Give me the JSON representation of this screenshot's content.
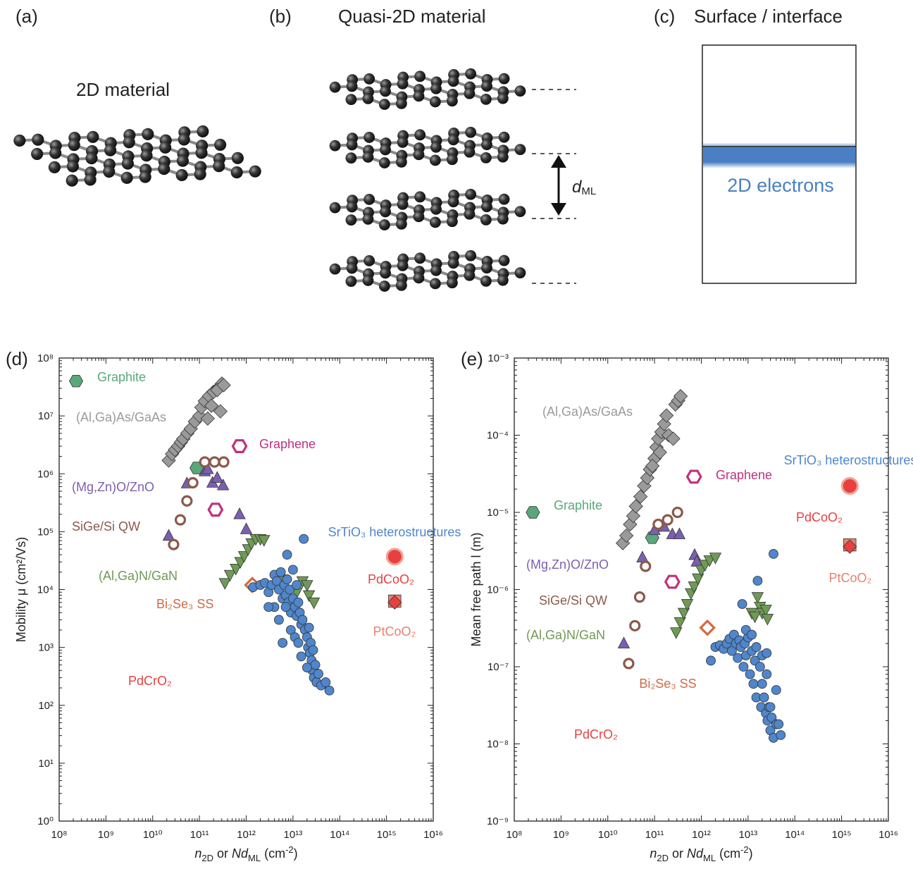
{
  "diagrams": {
    "a": {
      "label": "(a)",
      "title": "2D material"
    },
    "b": {
      "label": "(b)",
      "title": "Quasi-2D material",
      "spacing": [
        "d",
        "ML"
      ]
    },
    "c": {
      "label": "(c)",
      "title": "Surface / interface",
      "layer": "2D electrons"
    }
  },
  "chart_data": [
    {
      "type": "scatter",
      "panel": "(d)",
      "log_x": true,
      "log_y": true,
      "xlabel": [
        "n",
        "2D",
        " or ",
        "Nd",
        "ML",
        " (cm",
        "-2",
        ")"
      ],
      "ylabel": "Mobility μ (cm²/Vs)",
      "xlim": [
        100000000.0,
        1e+16
      ],
      "ylim": [
        1,
        100000000.0
      ],
      "xticks": [
        {
          "value": 100000000.0,
          "label": "10⁸"
        },
        {
          "value": 1000000000.0,
          "label": "10⁹"
        },
        {
          "value": 10000000000.0,
          "label": "10¹⁰"
        },
        {
          "value": 100000000000.0,
          "label": "10¹¹"
        },
        {
          "value": 1000000000000.0,
          "label": "10¹²"
        },
        {
          "value": 10000000000000.0,
          "label": "10¹³"
        },
        {
          "value": 100000000000000.0,
          "label": "10¹⁴"
        },
        {
          "value": 1000000000000000.0,
          "label": "10¹⁵"
        },
        {
          "value": 1e+16,
          "label": "10¹⁶"
        }
      ],
      "yticks": [
        {
          "value": 1,
          "label": "10⁰"
        },
        {
          "value": 10,
          "label": "10¹"
        },
        {
          "value": 100,
          "label": "10²"
        },
        {
          "value": 1000,
          "label": "10³"
        },
        {
          "value": 10000,
          "label": "10⁴"
        },
        {
          "value": 100000,
          "label": "10⁵"
        },
        {
          "value": 1000000,
          "label": "10⁶"
        },
        {
          "value": 10000000,
          "label": "10⁷"
        },
        {
          "value": 100000000,
          "label": "10⁸"
        }
      ],
      "series": [
        {
          "name": "Graphite",
          "color": "#5aa77a",
          "marker": "hexagon",
          "x": [
            230000000.0,
            87000000000.0
          ],
          "values": [
            40000000.0,
            1260000.0
          ]
        },
        {
          "name": "(Al,Ga)As/GaAs",
          "color": "#9a9a9a",
          "marker": "diamond",
          "x": [
            22000000000.0,
            26000000000.0,
            30000000000.0,
            35000000000.0,
            40000000000.0,
            45000000000.0,
            55000000000.0,
            65000000000.0,
            80000000000.0,
            100000000000.0,
            110000000000.0,
            130000000000.0,
            160000000000.0,
            200000000000.0,
            250000000000.0,
            300000000000.0,
            280000000000.0,
            150000000000.0,
            180000000000.0,
            240000000000.0,
            330000000000.0
          ],
          "values": [
            1700000.0,
            2200000.0,
            2600000.0,
            3000000.0,
            3500000.0,
            4000000.0,
            5000000.0,
            6000000.0,
            8000000.0,
            10000000.0,
            14000000.0,
            18000000.0,
            22000000.0,
            26000000.0,
            30000000.0,
            36000000.0,
            12000000.0,
            9000000.0,
            15000000.0,
            28000000.0,
            34000000.0
          ]
        },
        {
          "name": "Graphene",
          "color": "#c0307f",
          "marker": "hexagon-open",
          "x": [
            720000000000.0,
            220000000000.0
          ],
          "values": [
            3000000.0,
            240000.0
          ]
        },
        {
          "name": "(Mg,Zn)O/ZnO",
          "color": "#7b5fb0",
          "marker": "triangle",
          "x": [
            22000000000.0,
            54000000000.0,
            130000000000.0,
            150000000000.0,
            190000000000.0,
            320000000000.0,
            720000000000.0,
            1000000000000.0,
            240000000000.0
          ],
          "values": [
            85000.0,
            680000.0,
            1100000.0,
            1200000.0,
            700000.0,
            630000.0,
            200000.0,
            110000.0,
            850000.0
          ]
        },
        {
          "name": "SiGe/Si QW",
          "color": "#8b5a4a",
          "marker": "circle-open",
          "x": [
            28000000000.0,
            39000000000.0,
            54000000000.0,
            72000000000.0,
            130000000000.0,
            210000000000.0,
            330000000000.0
          ],
          "values": [
            60000.0,
            160000.0,
            340000.0,
            700000.0,
            1600000.0,
            1600000.0,
            1600000.0
          ]
        },
        {
          "name": "(Al,Ga)N/GaN",
          "color": "#6f9a55",
          "marker": "triangle-down",
          "x": [
            350000000000.0,
            450000000000.0,
            600000000000.0,
            750000000000.0,
            900000000000.0,
            1100000000000.0,
            1300000000000.0,
            1600000000000.0,
            2000000000000.0,
            2400000000000.0,
            6000000000000.0,
            16000000000000.0,
            22000000000000.0,
            28000000000000.0,
            12000000000000.0,
            20000000000000.0,
            10000000000000.0
          ],
          "values": [
            13000.0,
            18000.0,
            23000.0,
            30000.0,
            38000.0,
            50000.0,
            63000.0,
            75000.0,
            75000.0,
            72000.0,
            15000.0,
            14000.0,
            8000.0,
            6000.0,
            9000.0,
            12000.0,
            5000.0
          ]
        },
        {
          "name": "Bi₂Se₃ SS",
          "color": "#d06a45",
          "marker": "diamond-open",
          "x": [
            1350000000000.0
          ],
          "values": [
            12000.0
          ]
        },
        {
          "name": "SrTiO₃ heterostructures",
          "color": "#4f86cc",
          "marker": "circle",
          "x": [
            1400000000000.0,
            2000000000000.0,
            2500000000000.0,
            3000000000000.0,
            3500000000000.0,
            4000000000000.0,
            4500000000000.0,
            5000000000000.0,
            5500000000000.0,
            6000000000000.0,
            6500000000000.0,
            7000000000000.0,
            7500000000000.0,
            8000000000000.0,
            8500000000000.0,
            9000000000000.0,
            10000000000000.0,
            11000000000000.0,
            12000000000000.0,
            13000000000000.0,
            14000000000000.0,
            15000000000000.0,
            16000000000000.0,
            17000000000000.0,
            18000000000000.0,
            20000000000000.0,
            21000000000000.0,
            22000000000000.0,
            23000000000000.0,
            24000000000000.0,
            25000000000000.0,
            26000000000000.0,
            27000000000000.0,
            28000000000000.0,
            30000000000000.0,
            32000000000000.0,
            35000000000000.0,
            40000000000000.0,
            50000000000000.0,
            60000000000000.0,
            4000000000000.0,
            5000000000000.0,
            6000000000000.0,
            7000000000000.0,
            9000000000000.0,
            11000000000000.0,
            13000000000000.0,
            15000000000000.0,
            20000000000000.0,
            7500000000000.0,
            10000000000000.0,
            3000000000000.0,
            12000000000000.0
          ],
          "values": [
            11000.0,
            12000.0,
            13000.0,
            9000.0,
            12000.0,
            18000.0,
            14000.0,
            10000.0,
            20000.0,
            7000.0,
            12000.0,
            8000.0,
            15000.0,
            6000.0,
            10000.0,
            4000.0,
            7000.0,
            5000.0,
            3500.0,
            6000.0,
            4000.0,
            2500.0,
            3000.0,
            75000.0,
            2000.0,
            1500.0,
            1000.0,
            2200.0,
            800,
            1200.0,
            600,
            400,
            900,
            300,
            500,
            250,
            350,
            220,
            250,
            180,
            5000.0,
            3000.0,
            1200.0,
            5000.0,
            2000.0,
            1500.0,
            1200.0,
            700,
            450,
            40000.0,
            22000.0,
            5000.0,
            12000.0
          ]
        },
        {
          "name": "PdCoO₂",
          "color": "#e84040",
          "marker": "circle-halo",
          "x": [
            1500000000000000.0
          ],
          "values": [
            37000.0
          ]
        },
        {
          "name": "PtCoO₂",
          "color": "#e88070",
          "marker": "square",
          "x": [
            1500000000000000.0
          ],
          "values": [
            6300.0
          ]
        },
        {
          "name": "PdCrO₂",
          "color": "#e84040",
          "marker": "diamond",
          "x": [
            1500000000000000.0
          ],
          "values": [
            6000.0
          ]
        }
      ]
    },
    {
      "type": "scatter",
      "panel": "(e)",
      "log_x": true,
      "log_y": true,
      "xlabel": [
        "n",
        "2D",
        " or ",
        "Nd",
        "ML",
        " (cm",
        "-2",
        ")"
      ],
      "ylabel": "Mean free path l (m)",
      "xlim": [
        100000000.0,
        1e+16
      ],
      "ylim": [
        1e-09,
        0.001
      ],
      "xticks": [
        {
          "value": 100000000.0,
          "label": "10⁸"
        },
        {
          "value": 1000000000.0,
          "label": "10⁹"
        },
        {
          "value": 10000000000.0,
          "label": "10¹⁰"
        },
        {
          "value": 100000000000.0,
          "label": "10¹¹"
        },
        {
          "value": 1000000000000.0,
          "label": "10¹²"
        },
        {
          "value": 10000000000000.0,
          "label": "10¹³"
        },
        {
          "value": 100000000000000.0,
          "label": "10¹⁴"
        },
        {
          "value": 1000000000000000.0,
          "label": "10¹⁵"
        },
        {
          "value": 1e+16,
          "label": "10¹⁶"
        }
      ],
      "yticks": [
        {
          "value": 1e-09,
          "label": "10⁻⁹"
        },
        {
          "value": 1e-08,
          "label": "10⁻⁸"
        },
        {
          "value": 1e-07,
          "label": "10⁻⁷"
        },
        {
          "value": 1e-06,
          "label": "10⁻⁶"
        },
        {
          "value": 1e-05,
          "label": "10⁻⁵"
        },
        {
          "value": 0.0001,
          "label": "10⁻⁴"
        },
        {
          "value": 0.001,
          "label": "10⁻³"
        }
      ],
      "series": [
        {
          "name": "Graphite",
          "color": "#5aa77a",
          "marker": "hexagon",
          "x": [
            250000000.0,
            89000000000.0
          ],
          "values": [
            1e-05,
            4.7e-06
          ]
        },
        {
          "name": "(Al,Ga)As/GaAs",
          "color": "#9a9a9a",
          "marker": "diamond",
          "x": [
            21000000000.0,
            25000000000.0,
            30000000000.0,
            35000000000.0,
            40000000000.0,
            50000000000.0,
            60000000000.0,
            70000000000.0,
            80000000000.0,
            100000000000.0,
            110000000000.0,
            120000000000.0,
            140000000000.0,
            160000000000.0,
            180000000000.0,
            200000000000.0,
            250000000000.0,
            280000000000.0,
            320000000000.0,
            360000000000.0,
            130000000000.0,
            90000000000.0
          ],
          "values": [
            4e-06,
            5e-06,
            7e-06,
            9e-06,
            1.2e-05,
            1.6e-05,
            2.2e-05,
            2.8e-05,
            3.6e-05,
            5e-05,
            7e-05,
            9e-05,
            0.00011,
            0.00014,
            0.00018,
            0.0001,
            9e-05,
            0.00025,
            0.00028,
            0.00032,
            6e-05,
            4e-05
          ]
        },
        {
          "name": "Graphene",
          "color": "#c0307f",
          "marker": "hexagon-open",
          "x": [
            700000000000.0,
            240000000000.0
          ],
          "values": [
            2.9e-05,
            1.26e-06
          ]
        },
        {
          "name": "(Mg,Zn)O/ZnO",
          "color": "#7b5fb0",
          "marker": "triangle",
          "x": [
            22000000000.0,
            55000000000.0,
            100000000000.0,
            160000000000.0,
            240000000000.0,
            340000000000.0,
            720000000000.0,
            800000000000.0
          ],
          "values": [
            2e-07,
            2.6e-06,
            5.9e-06,
            6.5e-06,
            5.2e-06,
            5.2e-06,
            2.8e-06,
            2.3e-06
          ]
        },
        {
          "name": "SiGe/Si QW",
          "color": "#8b5a4a",
          "marker": "circle-open",
          "x": [
            28000000000.0,
            38000000000.0,
            48000000000.0,
            64000000000.0,
            120000000000.0,
            190000000000.0,
            310000000000.0
          ],
          "values": [
            1.1e-07,
            3.4e-07,
            8e-07,
            2e-06,
            7e-06,
            8e-06,
            1e-05
          ]
        },
        {
          "name": "(Al,Ga)N/GaN",
          "color": "#6f9a55",
          "marker": "triangle-down",
          "x": [
            290000000000.0,
            350000000000.0,
            420000000000.0,
            500000000000.0,
            600000000000.0,
            700000000000.0,
            850000000000.0,
            1000000000000.0,
            1200000000000.0,
            1500000000000.0,
            2000000000000.0,
            16000000000000.0,
            18000000000000.0,
            20000000000000.0,
            24000000000000.0,
            12000000000000.0,
            14000000000000.0,
            26000000000000.0
          ],
          "values": [
            2.8e-07,
            3.8e-07,
            5e-07,
            6.5e-07,
            9e-07,
            1.1e-06,
            1.4e-06,
            1.8e-06,
            2.1e-06,
            2.4e-06,
            2.6e-06,
            8e-07,
            6e-07,
            5e-07,
            5.5e-07,
            5e-07,
            4.5e-07,
            4.2e-07
          ]
        },
        {
          "name": "Bi₂Se₃ SS",
          "color": "#d06a45",
          "marker": "diamond-open",
          "x": [
            1350000000000.0
          ],
          "values": [
            3.2e-07
          ]
        },
        {
          "name": "SrTiO₃ heterostructures",
          "color": "#4f86cc",
          "marker": "circle",
          "x": [
            1600000000000.0,
            2000000000000.0,
            2500000000000.0,
            3000000000000.0,
            3500000000000.0,
            4000000000000.0,
            4500000000000.0,
            5000000000000.0,
            5500000000000.0,
            6000000000000.0,
            6500000000000.0,
            7000000000000.0,
            7500000000000.0,
            8000000000000.0,
            8500000000000.0,
            9000000000000.0,
            10000000000000.0,
            11000000000000.0,
            12000000000000.0,
            13000000000000.0,
            14000000000000.0,
            15000000000000.0,
            16000000000000.0,
            18000000000000.0,
            19000000000000.0,
            20000000000000.0,
            22000000000000.0,
            24000000000000.0,
            25000000000000.0,
            26000000000000.0,
            28000000000000.0,
            30000000000000.0,
            32000000000000.0,
            35000000000000.0,
            40000000000000.0,
            45000000000000.0,
            50000000000000.0,
            35000000000000.0,
            40000000000000.0,
            30000000000000.0,
            20000000000000.0,
            15000000000000.0,
            9000000000000.0,
            12000000000000.0,
            25000000000000.0
          ],
          "values": [
            1.2e-07,
            1.8e-07,
            1.9e-07,
            1.7e-07,
            2e-07,
            2.3e-07,
            1.6e-07,
            2.6e-07,
            2e-07,
            1.3e-07,
            2.2e-07,
            1.8e-07,
            6.5e-07,
            1e-07,
            2e-07,
            1.4e-07,
            2.4e-07,
            8e-08,
            1.6e-07,
            6e-08,
            1.2e-07,
            4e-08,
            1.3e-06,
            1e-07,
            3e-08,
            6e-08,
            4e-08,
            2.5e-08,
            8e-08,
            2e-08,
            3e-08,
            1.5e-08,
            2.2e-08,
            1.2e-08,
            1.8e-08,
            1.8e-08,
            1.3e-08,
            2.9e-06,
            5e-08,
            3e-08,
            1.4e-07,
            1.8e-07,
            3e-07,
            2.6e-07,
            1.5e-07
          ]
        },
        {
          "name": "PdCoO₂",
          "color": "#e84040",
          "marker": "circle-halo",
          "x": [
            1500000000000000.0
          ],
          "values": [
            2.2e-05
          ]
        },
        {
          "name": "PtCoO₂",
          "color": "#e88070",
          "marker": "square",
          "x": [
            1500000000000000.0
          ],
          "values": [
            3.8e-06
          ]
        },
        {
          "name": "PdCrO₂",
          "color": "#e84040",
          "marker": "diamond",
          "x": [
            1500000000000000.0
          ],
          "values": [
            3.6e-06
          ]
        }
      ]
    }
  ]
}
